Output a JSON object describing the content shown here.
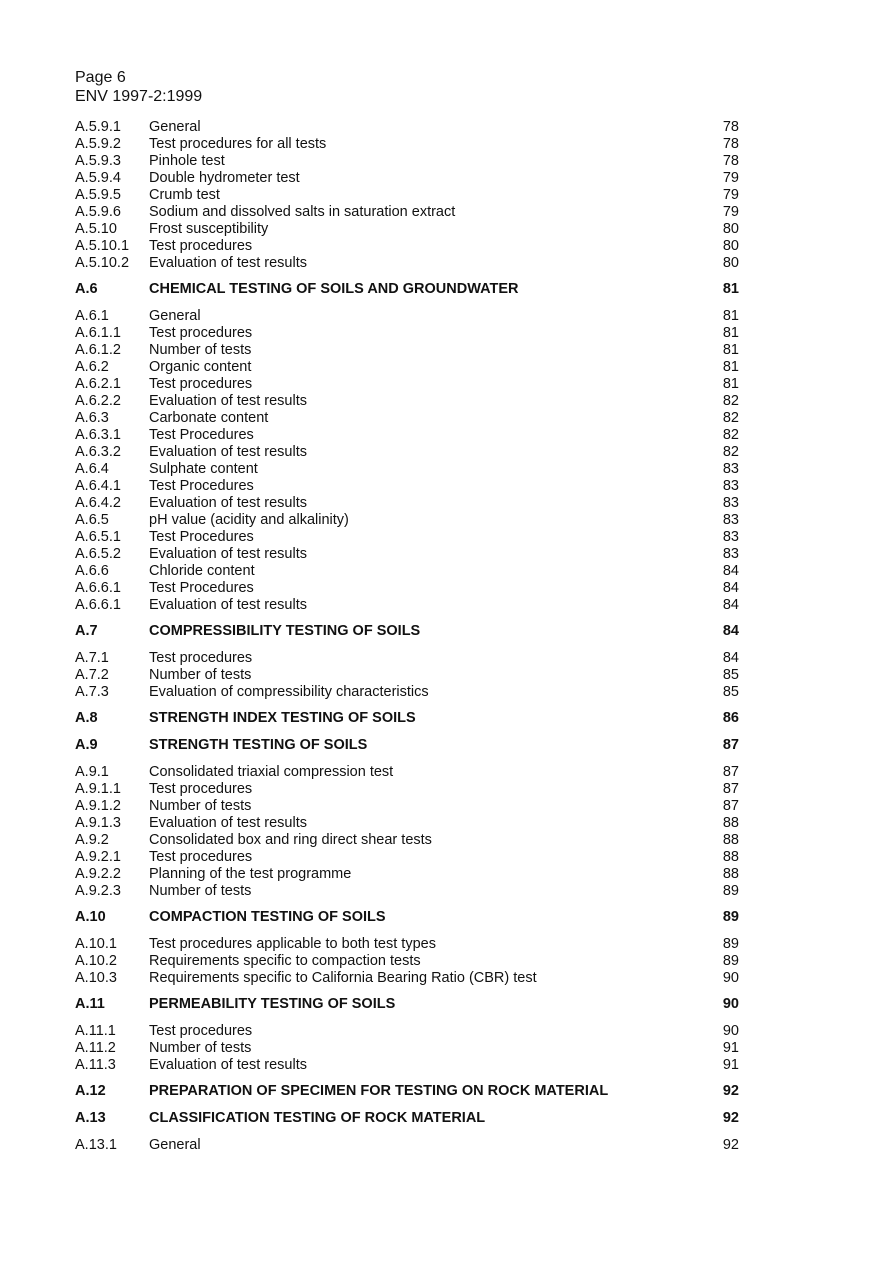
{
  "header": {
    "page": "Page 6",
    "doc": "ENV 1997-2:1999"
  },
  "toc": [
    {
      "num": "A.5.9.1",
      "title": "General",
      "page": "78"
    },
    {
      "num": "A.5.9.2",
      "title": "Test procedures for all tests",
      "page": "78"
    },
    {
      "num": "A.5.9.3",
      "title": "Pinhole test",
      "page": "78"
    },
    {
      "num": "A.5.9.4",
      "title": "Double hydrometer test",
      "page": "79"
    },
    {
      "num": "A.5.9.5",
      "title": "Crumb test",
      "page": "79"
    },
    {
      "num": "A.5.9.6",
      "title": "Sodium and dissolved salts in saturation extract",
      "page": "79"
    },
    {
      "num": "A.5.10",
      "title": "Frost susceptibility",
      "page": "80"
    },
    {
      "num": "A.5.10.1",
      "title": "Test procedures",
      "page": "80"
    },
    {
      "num": "A.5.10.2",
      "title": "Evaluation of test results",
      "page": "80"
    },
    {
      "num": "A.6",
      "title": "CHEMICAL TESTING OF SOILS AND GROUNDWATER",
      "page": "81",
      "heading": true
    },
    {
      "num": "A.6.1",
      "title": "General",
      "page": "81"
    },
    {
      "num": "A.6.1.1",
      "title": "Test procedures",
      "page": "81"
    },
    {
      "num": "A.6.1.2",
      "title": "Number of tests",
      "page": "81"
    },
    {
      "num": "A.6.2",
      "title": "Organic content",
      "page": "81"
    },
    {
      "num": "A.6.2.1",
      "title": "Test procedures",
      "page": "81"
    },
    {
      "num": "A.6.2.2",
      "title": "Evaluation of test results",
      "page": "82"
    },
    {
      "num": "A.6.3",
      "title": "Carbonate content",
      "page": "82"
    },
    {
      "num": "A.6.3.1",
      "title": "Test Procedures",
      "page": "82"
    },
    {
      "num": "A.6.3.2",
      "title": "Evaluation of test results",
      "page": "82"
    },
    {
      "num": "A.6.4",
      "title": "Sulphate content",
      "page": "83"
    },
    {
      "num": "A.6.4.1",
      "title": "Test Procedures",
      "page": "83"
    },
    {
      "num": "A.6.4.2",
      "title": "Evaluation of test results",
      "page": "83"
    },
    {
      "num": "A.6.5",
      "title": "pH value (acidity and alkalinity)",
      "page": "83"
    },
    {
      "num": "A.6.5.1",
      "title": "Test Procedures",
      "page": "83"
    },
    {
      "num": "A.6.5.2",
      "title": "Evaluation of test results",
      "page": "83"
    },
    {
      "num": "A.6.6",
      "title": "Chloride content",
      "page": "84"
    },
    {
      "num": "A.6.6.1",
      "title": "Test Procedures",
      "page": "84"
    },
    {
      "num": "A.6.6.1",
      "title": "Evaluation of test results",
      "page": "84"
    },
    {
      "num": "A.7",
      "title": "COMPRESSIBILITY TESTING OF SOILS",
      "page": "84",
      "heading": true
    },
    {
      "num": "A.7.1",
      "title": "Test procedures",
      "page": "84"
    },
    {
      "num": "A.7.2",
      "title": "Number of tests",
      "page": "85"
    },
    {
      "num": "A.7.3",
      "title": "Evaluation of compressibility characteristics",
      "page": "85"
    },
    {
      "num": "A.8",
      "title": "STRENGTH INDEX TESTING OF SOILS",
      "page": "86",
      "heading": true
    },
    {
      "num": "A.9",
      "title": "STRENGTH TESTING OF SOILS",
      "page": "87",
      "heading": true
    },
    {
      "num": "A.9.1",
      "title": "Consolidated triaxial compression test",
      "page": "87"
    },
    {
      "num": "A.9.1.1",
      "title": "Test procedures",
      "page": "87"
    },
    {
      "num": "A.9.1.2",
      "title": "Number of tests",
      "page": "87"
    },
    {
      "num": "A.9.1.3",
      "title": "Evaluation of test results",
      "page": "88"
    },
    {
      "num": "A.9.2",
      "title": "Consolidated box and ring direct shear tests",
      "page": "88"
    },
    {
      "num": "A.9.2.1",
      "title": "Test procedures",
      "page": "88"
    },
    {
      "num": "A.9.2.2",
      "title": "Planning of the test programme",
      "page": "88"
    },
    {
      "num": "A.9.2.3",
      "title": "Number of tests",
      "page": "89"
    },
    {
      "num": "A.10",
      "title": "COMPACTION TESTING OF SOILS",
      "page": "89",
      "heading": true
    },
    {
      "num": "A.10.1",
      "title": "Test procedures applicable to both test types",
      "page": "89"
    },
    {
      "num": "A.10.2",
      "title": "Requirements specific to compaction tests",
      "page": "89"
    },
    {
      "num": "A.10.3",
      "title": "Requirements specific to California Bearing Ratio (CBR) test",
      "page": "90"
    },
    {
      "num": "A.11",
      "title": "PERMEABILITY TESTING OF SOILS",
      "page": "90",
      "heading": true
    },
    {
      "num": "A.11.1",
      "title": "Test procedures",
      "page": "90"
    },
    {
      "num": "A.11.2",
      "title": "Number of tests",
      "page": "91"
    },
    {
      "num": "A.11.3",
      "title": "Evaluation of test results",
      "page": "91"
    },
    {
      "num": "A.12",
      "title": "PREPARATION OF SPECIMEN FOR TESTING ON ROCK MATERIAL",
      "page": "92",
      "heading": true
    },
    {
      "num": "A.13",
      "title": "CLASSIFICATION TESTING OF ROCK MATERIAL",
      "page": "92",
      "heading": true
    },
    {
      "num": "A.13.1",
      "title": "General",
      "page": "92"
    }
  ]
}
